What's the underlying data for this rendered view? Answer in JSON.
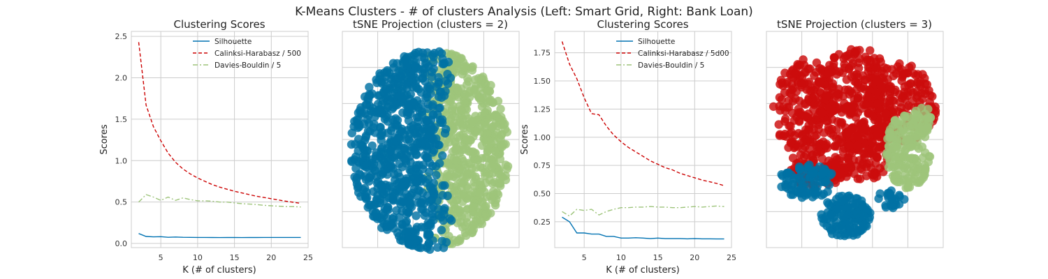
{
  "suptitle": "K-Means Clusters - # of clusters Analysis (Left: Smart Grid, Right: Bank Loan)",
  "colors": {
    "silhouette": "#0072B2",
    "calinski": "#CC0000",
    "davies": "#9DC47A",
    "grid": "#CCCCCC",
    "blue_cluster": "#0072A3",
    "green_cluster": "#9DC47A",
    "red_cluster": "#CC0C0C"
  },
  "chart_data": [
    {
      "type": "line",
      "title": "Clustering Scores",
      "xlabel": "K (# of clusters)",
      "ylabel": "Scores",
      "xlim": [
        1,
        25
      ],
      "ylim": [
        -0.05,
        2.56
      ],
      "xticks": [
        "5",
        "10",
        "15",
        "20",
        "25"
      ],
      "yticks": [
        "0.0",
        "0.5",
        "1.0",
        "1.5",
        "2.0",
        "2.5"
      ],
      "grid": true,
      "legend_position": "top-right",
      "x": [
        2,
        3,
        4,
        5,
        6,
        7,
        8,
        9,
        10,
        11,
        12,
        13,
        14,
        15,
        16,
        17,
        18,
        19,
        20,
        21,
        22,
        23,
        24
      ],
      "series": [
        {
          "name": "Silhouette",
          "style": "solid",
          "values": [
            0.12,
            0.085,
            0.08,
            0.082,
            0.075,
            0.078,
            0.075,
            0.074,
            0.073,
            0.073,
            0.072,
            0.071,
            0.072,
            0.072,
            0.071,
            0.072,
            0.072,
            0.073,
            0.073,
            0.073,
            0.073,
            0.073,
            0.073
          ]
        },
        {
          "name": "Calinksi-Harabasz / 500",
          "style": "dashed",
          "values": [
            2.43,
            1.67,
            1.41,
            1.24,
            1.09,
            0.98,
            0.9,
            0.84,
            0.79,
            0.75,
            0.71,
            0.68,
            0.655,
            0.63,
            0.61,
            0.59,
            0.57,
            0.555,
            0.54,
            0.525,
            0.51,
            0.497,
            0.485
          ]
        },
        {
          "name": "Davies-Bouldin / 5",
          "style": "dashdot",
          "values": [
            0.5,
            0.59,
            0.56,
            0.52,
            0.56,
            0.52,
            0.55,
            0.53,
            0.515,
            0.515,
            0.51,
            0.5,
            0.5,
            0.49,
            0.48,
            0.475,
            0.47,
            0.46,
            0.455,
            0.45,
            0.445,
            0.445,
            0.44
          ]
        }
      ]
    },
    {
      "type": "scatter",
      "title": "tSNE Projection (clusters = 2)",
      "grid": true,
      "cluster_count": 2,
      "cluster_colors": [
        "#0072A3",
        "#9DC47A"
      ]
    },
    {
      "type": "line",
      "title": "Clustering Scores",
      "xlabel": "K (# of clusters)",
      "ylabel": "Scores",
      "xlim": [
        1,
        25
      ],
      "ylim": [
        0.02,
        1.94
      ],
      "xticks": [
        "5",
        "10",
        "15",
        "20",
        "25"
      ],
      "yticks": [
        "0.25",
        "0.50",
        "0.75",
        "1.00",
        "1.25",
        "1.50",
        "1.75"
      ],
      "grid": true,
      "legend_position": "top-right",
      "x": [
        2,
        3,
        4,
        5,
        6,
        7,
        8,
        9,
        10,
        11,
        12,
        13,
        14,
        15,
        16,
        17,
        18,
        19,
        20,
        21,
        22,
        23,
        24
      ],
      "series": [
        {
          "name": "Silhouette",
          "style": "solid",
          "values": [
            0.29,
            0.25,
            0.15,
            0.15,
            0.14,
            0.14,
            0.12,
            0.12,
            0.105,
            0.105,
            0.108,
            0.105,
            0.1,
            0.105,
            0.1,
            0.1,
            0.1,
            0.098,
            0.1,
            0.098,
            0.098,
            0.097,
            0.097
          ]
        },
        {
          "name": "Calinksi-Harabasz / 5d00",
          "style": "dashed",
          "values": [
            1.85,
            1.65,
            1.52,
            1.35,
            1.21,
            1.2,
            1.1,
            1.02,
            0.96,
            0.91,
            0.87,
            0.83,
            0.79,
            0.76,
            0.73,
            0.71,
            0.68,
            0.66,
            0.64,
            0.62,
            0.605,
            0.59,
            0.57
          ]
        },
        {
          "name": "Davies-Bouldin / 5",
          "style": "dashdot",
          "values": [
            0.34,
            0.3,
            0.36,
            0.35,
            0.36,
            0.31,
            0.34,
            0.36,
            0.375,
            0.375,
            0.38,
            0.38,
            0.385,
            0.38,
            0.38,
            0.375,
            0.375,
            0.38,
            0.385,
            0.38,
            0.385,
            0.39,
            0.385
          ]
        }
      ]
    },
    {
      "type": "scatter",
      "title": "tSNE Projection (clusters = 3)",
      "grid": true,
      "cluster_count": 3,
      "cluster_colors": [
        "#CC0C0C",
        "#0072A3",
        "#9DC47A"
      ]
    }
  ]
}
